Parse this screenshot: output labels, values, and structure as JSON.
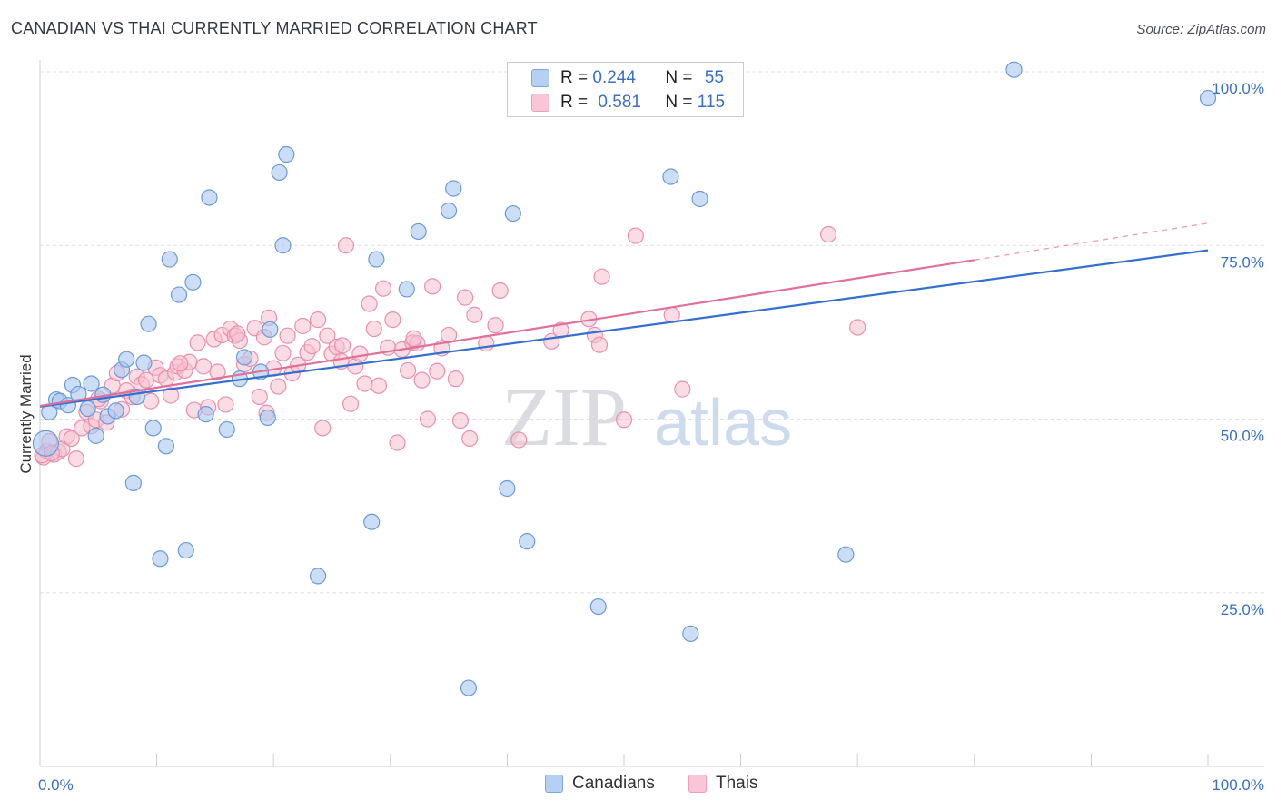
{
  "header": {
    "title": "CANADIAN VS THAI CURRENTLY MARRIED CORRELATION CHART",
    "source": "Source: ZipAtlas.com"
  },
  "watermark": {
    "zip": "ZIP",
    "atlas": "atlas"
  },
  "legend": {
    "rows": [
      {
        "r_label": "R =",
        "r_value": "0.244",
        "n_label": "N =",
        "n_value": "55"
      },
      {
        "r_label": "R =",
        "r_value": "0.581",
        "n_label": "N =",
        "n_value": "115"
      }
    ],
    "bottom": [
      "Canadians",
      "Thais"
    ]
  },
  "colors": {
    "canadians_fill": "#aac8f0",
    "canadians_stroke": "#6c9ad8",
    "canadians_line": "#3570d0",
    "thais_fill": "#f6bfd0",
    "thais_stroke": "#e890ad",
    "thais_line": "#e0709a",
    "tick_label": "#3a6fc4",
    "grid": "#dde0e5"
  },
  "chart_data": {
    "type": "scatter",
    "title": "CANADIAN VS THAI CURRENTLY MARRIED CORRELATION CHART",
    "xlabel": "",
    "ylabel": "Currently Married",
    "xlim": [
      0,
      100
    ],
    "ylim": [
      0,
      100
    ],
    "x_tick_labels": [
      "0.0%",
      "100.0%"
    ],
    "y_ticks": [
      25,
      50,
      75,
      100
    ],
    "y_tick_labels": [
      "25.0%",
      "50.0%",
      "75.0%",
      "100.0%"
    ],
    "grid": true,
    "series": [
      {
        "name": "Canadians",
        "r": 0.244,
        "n": 55,
        "trend": {
          "x": [
            0,
            100
          ],
          "y": [
            51.8,
            74.3
          ]
        },
        "points": [
          [
            0.5,
            46.5
          ],
          [
            0.8,
            51
          ],
          [
            1.4,
            52.8
          ],
          [
            1.7,
            52.6
          ],
          [
            2.4,
            52
          ],
          [
            2.8,
            54.9
          ],
          [
            3.3,
            53.6
          ],
          [
            4.1,
            51.5
          ],
          [
            4.4,
            55.1
          ],
          [
            4.8,
            47.6
          ],
          [
            5.4,
            53.5
          ],
          [
            5.8,
            50.4
          ],
          [
            6.5,
            51.2
          ],
          [
            7.0,
            57.1
          ],
          [
            7.4,
            58.6
          ],
          [
            8.0,
            40.8
          ],
          [
            8.3,
            53.2
          ],
          [
            8.9,
            58.1
          ],
          [
            9.3,
            63.7
          ],
          [
            9.7,
            48.7
          ],
          [
            10.3,
            29.9
          ],
          [
            10.8,
            46.1
          ],
          [
            11.1,
            73.0
          ],
          [
            11.9,
            67.9
          ],
          [
            12.5,
            31.1
          ],
          [
            13.1,
            69.7
          ],
          [
            14.2,
            50.7
          ],
          [
            14.5,
            81.9
          ],
          [
            16.0,
            48.5
          ],
          [
            17.1,
            55.8
          ],
          [
            17.5,
            58.9
          ],
          [
            18.9,
            56.8
          ],
          [
            19.5,
            50.2
          ],
          [
            19.7,
            62.9
          ],
          [
            20.5,
            85.5
          ],
          [
            20.8,
            75.0
          ],
          [
            21.1,
            88.1
          ],
          [
            23.8,
            27.4
          ],
          [
            28.4,
            35.2
          ],
          [
            28.8,
            73.0
          ],
          [
            31.4,
            68.7
          ],
          [
            32.4,
            77.0
          ],
          [
            35.0,
            80.0
          ],
          [
            35.4,
            83.2
          ],
          [
            36.7,
            11.3
          ],
          [
            40.0,
            40.0
          ],
          [
            40.5,
            79.6
          ],
          [
            41.7,
            32.4
          ],
          [
            47.8,
            23.0
          ],
          [
            54.0,
            84.9
          ],
          [
            55.7,
            19.1
          ],
          [
            56.5,
            81.7
          ],
          [
            69.0,
            30.5
          ],
          [
            83.4,
            100.3
          ],
          [
            100.0,
            96.2
          ]
        ]
      },
      {
        "name": "Thais",
        "r": 0.581,
        "n": 115,
        "trend": {
          "x": [
            0,
            80
          ],
          "y": [
            51.9,
            72.9
          ]
        },
        "trend_extension": {
          "x": [
            80,
            100
          ],
          "y": [
            72.9,
            78.2
          ]
        },
        "points": [
          [
            0.3,
            44.5
          ],
          [
            0.6,
            45.4
          ],
          [
            0.8,
            46.8
          ],
          [
            1.2,
            44.9
          ],
          [
            1.6,
            45.3
          ],
          [
            1.9,
            45.7
          ],
          [
            2.3,
            47.5
          ],
          [
            2.7,
            47.2
          ],
          [
            3.1,
            44.3
          ],
          [
            3.6,
            48.7
          ],
          [
            4.0,
            51.0
          ],
          [
            4.4,
            49.0
          ],
          [
            4.8,
            49.9
          ],
          [
            5.2,
            52.6
          ],
          [
            5.7,
            49.5
          ],
          [
            6.2,
            54.8
          ],
          [
            6.6,
            56.6
          ],
          [
            7.0,
            51.4
          ],
          [
            7.4,
            54.1
          ],
          [
            7.9,
            53.2
          ],
          [
            8.3,
            56.1
          ],
          [
            8.7,
            55.0
          ],
          [
            9.1,
            55.6
          ],
          [
            9.5,
            52.6
          ],
          [
            9.9,
            57.4
          ],
          [
            10.3,
            56.3
          ],
          [
            10.8,
            55.8
          ],
          [
            11.2,
            53.4
          ],
          [
            11.6,
            56.7
          ],
          [
            11.8,
            57.6
          ],
          [
            12.4,
            57.0
          ],
          [
            12.8,
            58.2
          ],
          [
            13.2,
            51.3
          ],
          [
            13.5,
            61.0
          ],
          [
            14.0,
            57.6
          ],
          [
            14.4,
            51.7
          ],
          [
            14.9,
            61.5
          ],
          [
            15.2,
            56.8
          ],
          [
            15.6,
            62.1
          ],
          [
            15.9,
            52.1
          ],
          [
            16.3,
            63.0
          ],
          [
            16.7,
            62.0
          ],
          [
            17.1,
            61.3
          ],
          [
            17.5,
            57.9
          ],
          [
            18.0,
            58.7
          ],
          [
            18.4,
            63.1
          ],
          [
            18.8,
            53.2
          ],
          [
            19.2,
            61.8
          ],
          [
            19.6,
            64.6
          ],
          [
            20.0,
            57.3
          ],
          [
            20.4,
            54.7
          ],
          [
            20.8,
            59.5
          ],
          [
            21.2,
            62.0
          ],
          [
            21.6,
            56.6
          ],
          [
            22.1,
            57.8
          ],
          [
            22.5,
            63.4
          ],
          [
            22.9,
            59.6
          ],
          [
            23.3,
            60.5
          ],
          [
            23.8,
            64.3
          ],
          [
            24.2,
            48.7
          ],
          [
            24.6,
            62.0
          ],
          [
            25.0,
            59.4
          ],
          [
            25.4,
            60.4
          ],
          [
            25.8,
            58.3
          ],
          [
            26.2,
            75.0
          ],
          [
            26.6,
            52.2
          ],
          [
            27.0,
            57.6
          ],
          [
            27.4,
            59.4
          ],
          [
            27.8,
            55.1
          ],
          [
            28.2,
            66.6
          ],
          [
            28.6,
            63.0
          ],
          [
            29.0,
            54.8
          ],
          [
            29.4,
            68.8
          ],
          [
            29.8,
            60.3
          ],
          [
            30.2,
            64.3
          ],
          [
            30.6,
            46.6
          ],
          [
            31.0,
            60.0
          ],
          [
            31.5,
            57.0
          ],
          [
            31.9,
            61.0
          ],
          [
            32.3,
            60.9
          ],
          [
            32.7,
            55.6
          ],
          [
            33.2,
            50.0
          ],
          [
            33.6,
            69.1
          ],
          [
            34.0,
            56.9
          ],
          [
            34.4,
            60.2
          ],
          [
            35.0,
            62.1
          ],
          [
            35.6,
            55.8
          ],
          [
            36.0,
            49.8
          ],
          [
            36.4,
            67.5
          ],
          [
            36.8,
            47.2
          ],
          [
            37.2,
            65.0
          ],
          [
            38.2,
            60.9
          ],
          [
            39.0,
            63.5
          ],
          [
            39.4,
            68.5
          ],
          [
            43.8,
            61.2
          ],
          [
            44.6,
            62.8
          ],
          [
            47.0,
            64.4
          ],
          [
            47.5,
            62.1
          ],
          [
            47.9,
            60.7
          ],
          [
            48.1,
            70.5
          ],
          [
            50.0,
            49.9
          ],
          [
            51.0,
            76.4
          ],
          [
            54.1,
            65.0
          ],
          [
            55.0,
            54.3
          ],
          [
            67.5,
            76.6
          ],
          [
            70.0,
            63.2
          ],
          [
            0.2,
            44.8
          ],
          [
            1.0,
            45.1
          ],
          [
            5.0,
            52.9
          ],
          [
            12.0,
            58.0
          ],
          [
            16.9,
            62.3
          ],
          [
            19.4,
            50.9
          ],
          [
            25.9,
            60.6
          ],
          [
            32.0,
            61.6
          ],
          [
            41.0,
            47.0
          ]
        ]
      }
    ]
  }
}
